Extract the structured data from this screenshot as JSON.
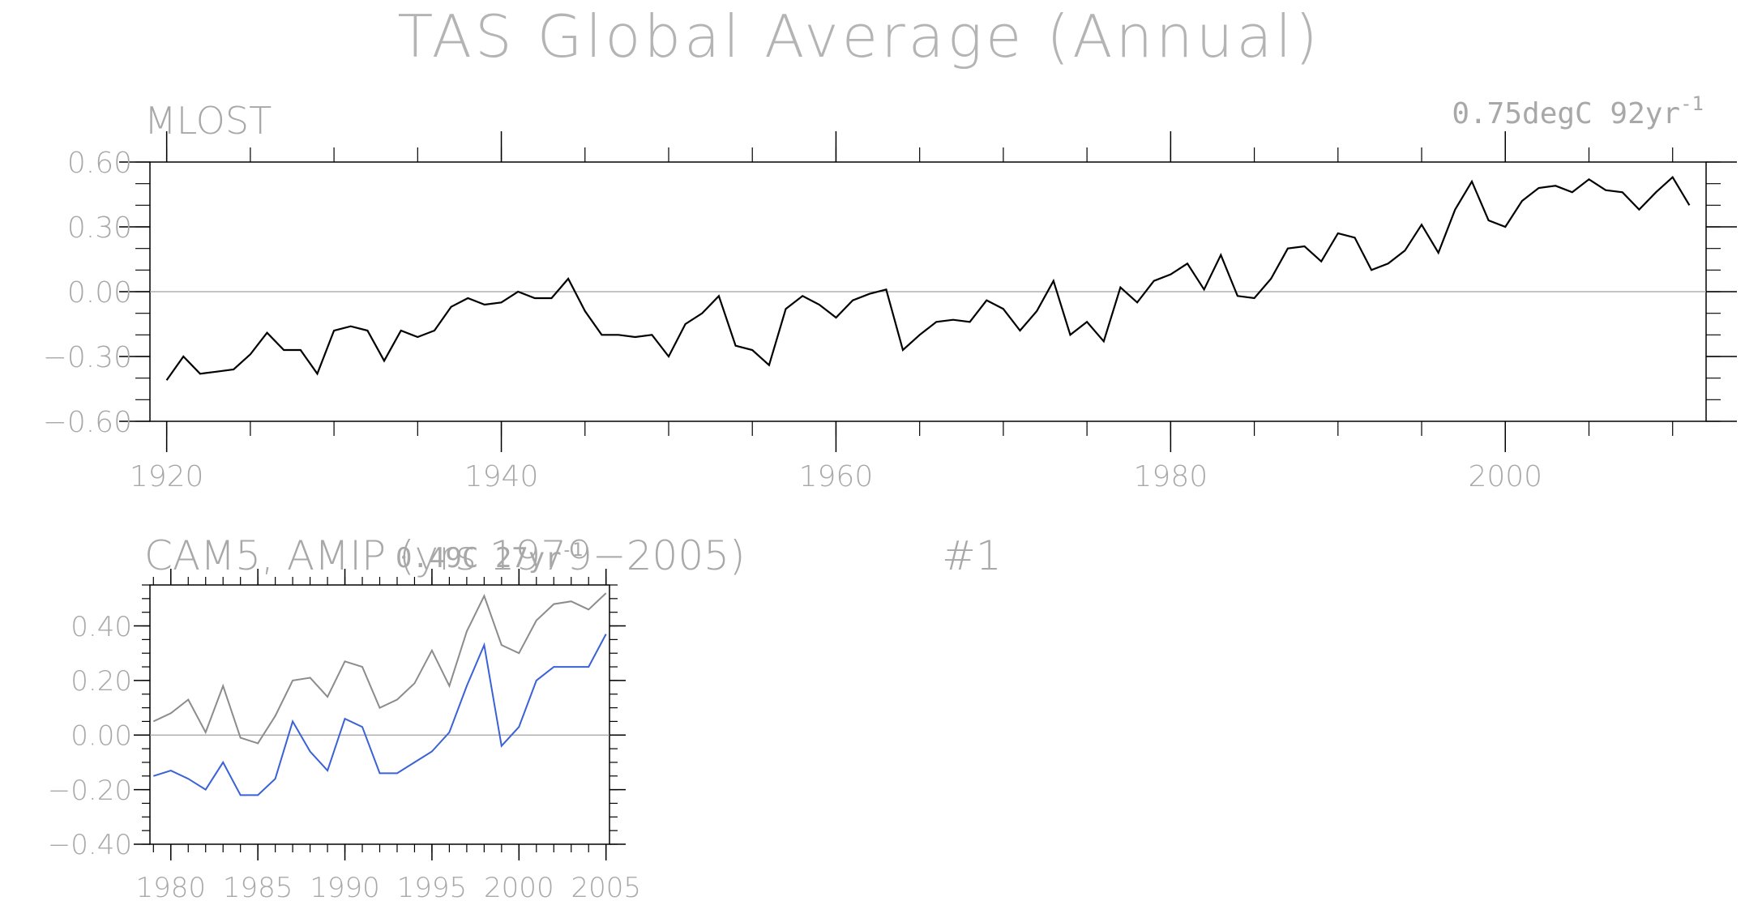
{
  "figure": {
    "title": "TAS Global Average (Annual)"
  },
  "colors": {
    "text": "#a0a0a0",
    "axis": "#000000",
    "obs_line": "#000000",
    "gray_line": "#8c8c8c",
    "model_line": "#3a62d6",
    "zero_line": "#a0a0a0"
  },
  "chart_data": [
    {
      "type": "line",
      "panel_label": "MLOST",
      "trend_text": "0.75degC 92yr",
      "trend_exp": "-1",
      "xlim": [
        1919,
        2012
      ],
      "ylim": [
        -0.6,
        0.6
      ],
      "x_ticks": [
        1920,
        1940,
        1960,
        1980,
        2000
      ],
      "y_ticks": [
        "0.60",
        "0.30",
        "0.00",
        "−0.30",
        "−0.60"
      ],
      "y_tick_values": [
        0.6,
        0.3,
        0.0,
        -0.3,
        -0.6
      ],
      "series": [
        {
          "color": "#000000",
          "x": [
            1920,
            1921,
            1922,
            1923,
            1924,
            1925,
            1926,
            1927,
            1928,
            1929,
            1930,
            1931,
            1932,
            1933,
            1934,
            1935,
            1936,
            1937,
            1938,
            1939,
            1940,
            1941,
            1942,
            1943,
            1944,
            1945,
            1946,
            1947,
            1948,
            1949,
            1950,
            1951,
            1952,
            1953,
            1954,
            1955,
            1956,
            1957,
            1958,
            1959,
            1960,
            1961,
            1962,
            1963,
            1964,
            1965,
            1966,
            1967,
            1968,
            1969,
            1970,
            1971,
            1972,
            1973,
            1974,
            1975,
            1976,
            1977,
            1978,
            1979,
            1980,
            1981,
            1982,
            1983,
            1984,
            1985,
            1986,
            1987,
            1988,
            1989,
            1990,
            1991,
            1992,
            1993,
            1994,
            1995,
            1996,
            1997,
            1998,
            1999,
            2000,
            2001,
            2002,
            2003,
            2004,
            2005,
            2006,
            2007,
            2008,
            2009,
            2010,
            2011
          ],
          "values": [
            -0.41,
            -0.3,
            -0.38,
            -0.37,
            -0.36,
            -0.29,
            -0.19,
            -0.27,
            -0.27,
            -0.38,
            -0.18,
            -0.16,
            -0.18,
            -0.32,
            -0.18,
            -0.21,
            -0.18,
            -0.07,
            -0.03,
            -0.06,
            -0.05,
            0.0,
            -0.03,
            -0.03,
            0.06,
            -0.09,
            -0.2,
            -0.2,
            -0.21,
            -0.2,
            -0.3,
            -0.15,
            -0.1,
            -0.02,
            -0.25,
            -0.27,
            -0.34,
            -0.08,
            -0.02,
            -0.06,
            -0.12,
            -0.04,
            -0.01,
            0.01,
            -0.27,
            -0.2,
            -0.14,
            -0.13,
            -0.14,
            -0.04,
            -0.08,
            -0.18,
            -0.09,
            0.05,
            -0.2,
            -0.14,
            -0.23,
            0.02,
            -0.05,
            0.05,
            0.08,
            0.13,
            0.01,
            0.17,
            -0.02,
            -0.03,
            0.06,
            0.2,
            0.21,
            0.14,
            0.27,
            0.25,
            0.1,
            0.13,
            0.19,
            0.31,
            0.18,
            0.38,
            0.51,
            0.33,
            0.3,
            0.42,
            0.48,
            0.49,
            0.46,
            0.52,
            0.47,
            0.46,
            0.38,
            0.46,
            0.53,
            0.4
          ]
        }
      ]
    },
    {
      "type": "line",
      "panel_label": "CAM5, AMIP (yrs 1979−2005)",
      "ensemble_label": "#1",
      "trend_text": "0.49C 27yr",
      "trend_exp": "-1",
      "xlim": [
        1978.8,
        2005.2
      ],
      "ylim": [
        -0.4,
        0.55
      ],
      "x_ticks": [
        1980,
        1985,
        1990,
        1995,
        2000,
        2005
      ],
      "y_ticks": [
        "0.40",
        "0.20",
        "0.00",
        "−0.20",
        "−0.40"
      ],
      "y_tick_values": [
        0.4,
        0.2,
        0.0,
        -0.2,
        -0.4
      ],
      "series": [
        {
          "color": "#8c8c8c",
          "x": [
            1979,
            1980,
            1981,
            1982,
            1983,
            1984,
            1985,
            1986,
            1987,
            1988,
            1989,
            1990,
            1991,
            1992,
            1993,
            1994,
            1995,
            1996,
            1997,
            1998,
            1999,
            2000,
            2001,
            2002,
            2003,
            2004,
            2005
          ],
          "values": [
            0.05,
            0.08,
            0.13,
            0.01,
            0.18,
            -0.01,
            -0.03,
            0.07,
            0.2,
            0.21,
            0.14,
            0.27,
            0.25,
            0.1,
            0.13,
            0.19,
            0.31,
            0.18,
            0.38,
            0.51,
            0.33,
            0.3,
            0.42,
            0.48,
            0.49,
            0.46,
            0.52
          ]
        },
        {
          "color": "#3a62d6",
          "x": [
            1979,
            1980,
            1981,
            1982,
            1983,
            1984,
            1985,
            1986,
            1987,
            1988,
            1989,
            1990,
            1991,
            1992,
            1993,
            1994,
            1995,
            1996,
            1997,
            1998,
            1999,
            2000,
            2001,
            2002,
            2003,
            2004,
            2005
          ],
          "values": [
            -0.15,
            -0.13,
            -0.16,
            -0.2,
            -0.1,
            -0.22,
            -0.22,
            -0.16,
            0.05,
            -0.06,
            -0.13,
            0.06,
            0.03,
            -0.14,
            -0.14,
            -0.1,
            -0.06,
            0.01,
            0.18,
            0.33,
            -0.04,
            0.03,
            0.2,
            0.25,
            0.25,
            0.25,
            0.37
          ]
        }
      ]
    }
  ]
}
